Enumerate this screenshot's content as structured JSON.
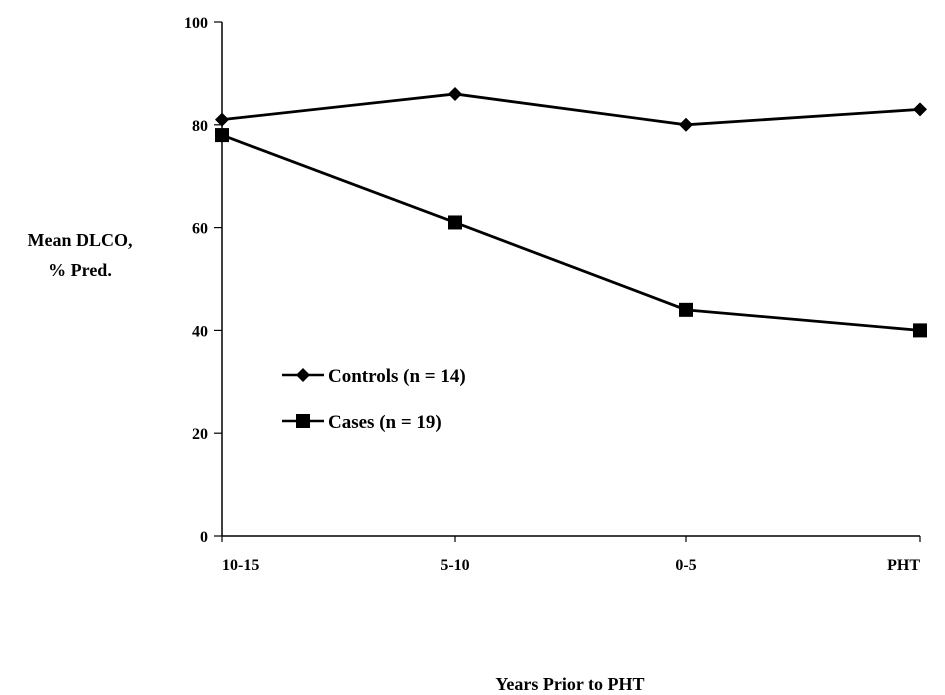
{
  "chart_data": {
    "type": "line",
    "categories": [
      "10-15",
      "5-10",
      "0-5",
      "PHT"
    ],
    "ylabel": [
      "Mean DLCO,",
      "% Pred."
    ],
    "xlabel": "Years Prior to PHT",
    "ylim": [
      0,
      100
    ],
    "yticks": [
      "0",
      "20",
      "40",
      "60",
      "80",
      "100"
    ],
    "legend_position": "center-left",
    "grid": false,
    "series": [
      {
        "name": "Controls (n = 14)",
        "marker": "diamond",
        "color": "#000000",
        "values": [
          81,
          86,
          80,
          83
        ]
      },
      {
        "name": "Cases (n = 19)",
        "marker": "square",
        "color": "#000000",
        "values": [
          78,
          61,
          44,
          40
        ]
      }
    ]
  }
}
